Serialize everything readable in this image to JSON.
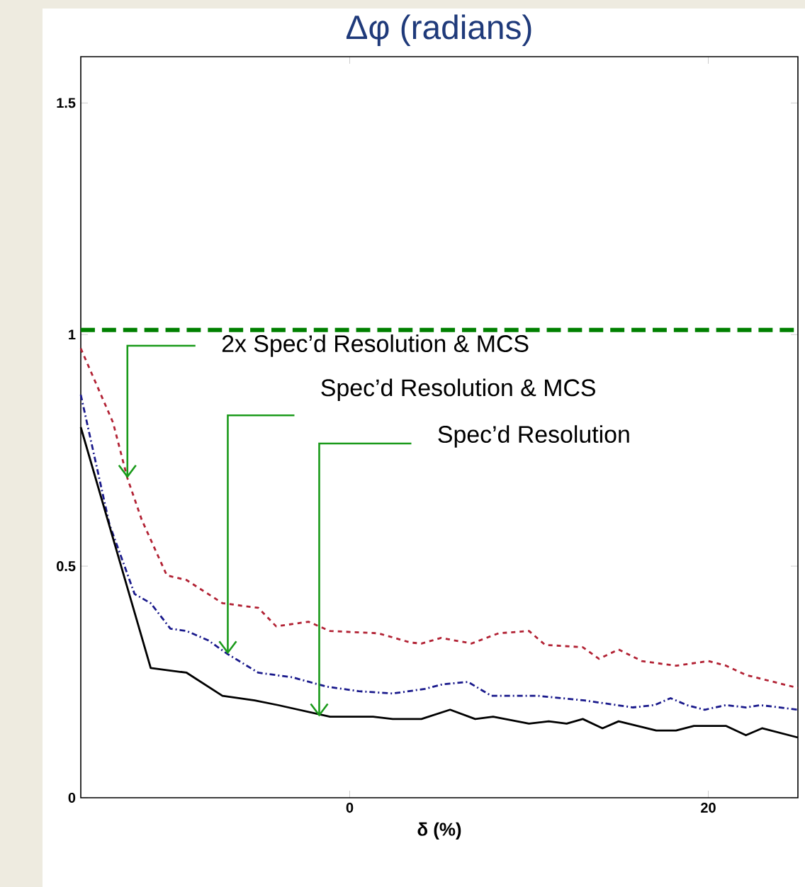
{
  "chart_data": {
    "type": "line",
    "title": "Δφ (radians)",
    "xlabel": "δ (%)",
    "xlim": [
      -15,
      25
    ],
    "ylim": [
      0,
      1.6
    ],
    "xticks": [
      0,
      20
    ],
    "yticks": [
      0,
      0.5,
      1,
      1.5
    ],
    "series": [
      {
        "color": "#b22234",
        "line_style": "dashed",
        "x": [
          -15,
          -13.2,
          -12.4,
          -11.6,
          -10.2,
          -9.1,
          -7.1,
          -5.1,
          -4.1,
          -2.3,
          -1.1,
          1.6,
          3.4,
          4.0,
          5.1,
          6.8,
          8.3,
          10.0,
          10.9,
          13.0,
          13.9,
          15.0,
          16.3,
          18.2,
          20.0,
          21.0,
          22.1,
          25
        ],
        "values": [
          0.97,
          0.81,
          0.69,
          0.6,
          0.48,
          0.47,
          0.42,
          0.41,
          0.37,
          0.38,
          0.36,
          0.355,
          0.335,
          0.333,
          0.345,
          0.333,
          0.355,
          0.36,
          0.33,
          0.325,
          0.3,
          0.32,
          0.295,
          0.285,
          0.295,
          0.285,
          0.265,
          0.237
        ]
      },
      {
        "color": "#1a1a8c",
        "line_style": "dashdot",
        "x": [
          -15,
          -13.4,
          -12.0,
          -11.1,
          -10.0,
          -9.1,
          -7.9,
          -6.8,
          -5.1,
          -3.2,
          -1.3,
          0.5,
          2.4,
          4.2,
          5.2,
          6.6,
          7.9,
          10.5,
          13.1,
          15.8,
          17.0,
          17.9,
          18.8,
          19.8,
          21.0,
          22.1,
          22.9,
          25
        ],
        "values": [
          0.87,
          0.59,
          0.44,
          0.42,
          0.365,
          0.36,
          0.34,
          0.31,
          0.27,
          0.26,
          0.24,
          0.23,
          0.225,
          0.235,
          0.245,
          0.25,
          0.22,
          0.22,
          0.21,
          0.195,
          0.2,
          0.215,
          0.2,
          0.19,
          0.2,
          0.195,
          0.2,
          0.19
        ]
      },
      {
        "color": "#000000",
        "line_style": "solid",
        "x": [
          -15,
          -11.1,
          -9.1,
          -7.1,
          -5.3,
          -4.0,
          -1.1,
          1.3,
          2.4,
          4.0,
          5.6,
          7.0,
          8.0,
          10.0,
          11.1,
          12.1,
          13.0,
          14.1,
          15.0,
          17.1,
          18.2,
          19.2,
          21.0,
          22.1,
          23.0,
          25
        ],
        "values": [
          0.8,
          0.28,
          0.27,
          0.22,
          0.21,
          0.2,
          0.175,
          0.175,
          0.17,
          0.17,
          0.19,
          0.17,
          0.175,
          0.16,
          0.165,
          0.16,
          0.17,
          0.15,
          0.165,
          0.145,
          0.145,
          0.155,
          0.155,
          0.135,
          0.15,
          0.13
        ]
      }
    ],
    "ref_lines": [
      {
        "axis": "y",
        "value": 1.01,
        "color": "#008000",
        "line_style": "dashed"
      }
    ],
    "annotations": [
      {
        "text": "2x Spec’d Resolution & MCS",
        "x": -12.4,
        "y": 0.69
      },
      {
        "text": "Spec’d Resolution & MCS",
        "x": -6.8,
        "y": 0.31
      },
      {
        "text": "Spec’d Resolution",
        "x": -1.7,
        "y": 0.175
      }
    ]
  }
}
